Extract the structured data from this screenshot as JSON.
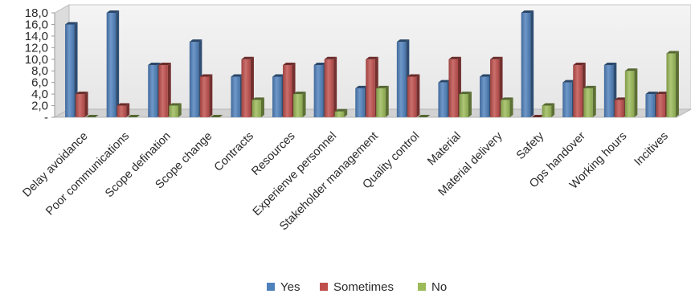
{
  "chart_data": {
    "type": "bar",
    "style": "3d-clustered-column",
    "categories": [
      "Delay avoidance",
      "Poor communications",
      "Scope defination",
      "Scope change",
      "Contracts",
      "Resources",
      "Experienve personnel",
      "Stakeholder management",
      "Quality control",
      "Material",
      "Material delivery",
      "Safety",
      "Ops handover",
      "Working hours",
      "Incitives"
    ],
    "series": [
      {
        "name": "Yes",
        "color": "#4F81BD",
        "values": [
          16,
          18,
          9,
          13,
          7,
          7,
          9,
          5,
          13,
          6,
          7,
          18,
          6,
          9,
          4
        ]
      },
      {
        "name": "Sometimes",
        "color": "#C0504D",
        "values": [
          4,
          2,
          9,
          7,
          10,
          9,
          10,
          10,
          7,
          10,
          10,
          0,
          9,
          3,
          4
        ]
      },
      {
        "name": "No",
        "color": "#9BBB59",
        "values": [
          0,
          0,
          2,
          0,
          3,
          4,
          1,
          5,
          0,
          4,
          3,
          2,
          5,
          8,
          11
        ]
      }
    ],
    "yticks": [
      "-",
      "2,0",
      "4,0",
      "6,0",
      "8,0",
      "10,0",
      "12,0",
      "14,0",
      "16,0",
      "18,0"
    ],
    "ylim": [
      0,
      18
    ],
    "grid": false,
    "legend_position": "bottom"
  }
}
